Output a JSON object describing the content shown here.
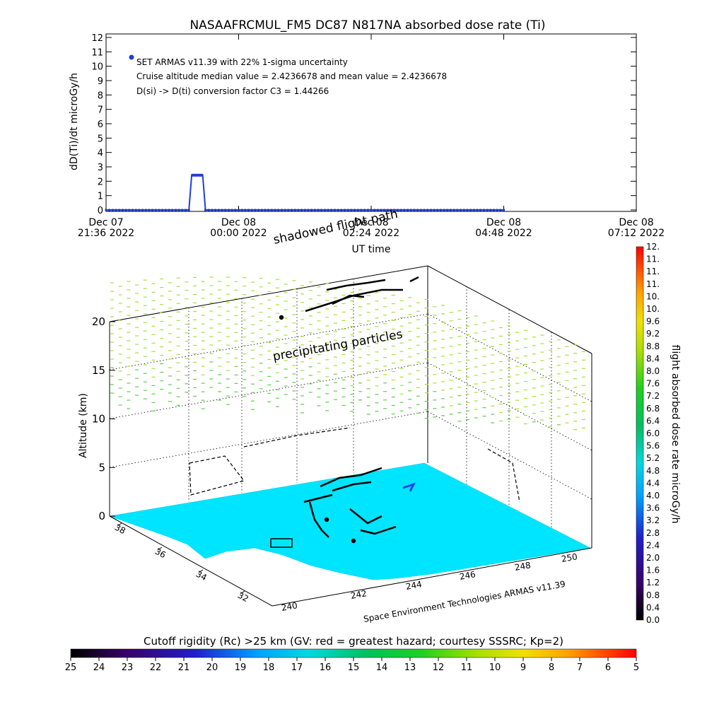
{
  "title": "NASAAFRCMUL_FM5 DC87 N817NA absorbed dose rate (Ti)",
  "colors": {
    "series": "#1f3fd6",
    "ground": "#00e5ff",
    "particles": "#9fe23a",
    "path": "#000000"
  },
  "chart_data": [
    {
      "type": "line",
      "title": "NASAAFRCMUL_FM5 DC87 N817NA absorbed dose rate (Ti)",
      "ylabel": "dD(Ti)/dt microGy/h",
      "xlabel": "UT time",
      "ylim": [
        0,
        12
      ],
      "y_ticks": [
        "0",
        "1",
        "2",
        "3",
        "4",
        "5",
        "6",
        "7",
        "8",
        "9",
        "10",
        "11",
        "12"
      ],
      "x_ticks": [
        {
          "line1": "Dec 07",
          "line2": "21:36 2022"
        },
        {
          "line1": "Dec 08",
          "line2": "00:00 2022"
        },
        {
          "line1": "Dec 08",
          "line2": "02:24 2022"
        },
        {
          "line1": "Dec 08",
          "line2": "04:48 2022"
        },
        {
          "line1": "Dec 08",
          "line2": "07:12 2022"
        }
      ],
      "x_hours": [
        0,
        2.4,
        4.8,
        7.2,
        9.6
      ],
      "series": [
        {
          "x_hours": [
            0.0,
            1.5,
            1.55,
            1.75,
            1.8,
            7.2
          ],
          "values": [
            0.0,
            0.0,
            2.42,
            2.42,
            0.0,
            0.0
          ]
        }
      ],
      "legend_marker": "SET ARMAS v11.39 with 22% 1-sigma uncertainty",
      "annotations": [
        "Cruise altitude median value = 2.4236678 and mean value = 2.4236678",
        "D(si) -> D(ti) conversion factor C3 = 1.44266"
      ]
    },
    {
      "type": "scatter",
      "zlabel": "Altitude (km)",
      "z_ticks": [
        "0",
        "5",
        "10",
        "15",
        "20"
      ],
      "lat_ticks": [
        "38",
        "36",
        "34",
        "32"
      ],
      "lon_ticks": [
        "240",
        "242",
        "244",
        "246",
        "248",
        "250"
      ],
      "annotations": [
        "shadowed flight path",
        "precipitating particles"
      ],
      "credit": "Space Environment Technologies ARMAS v11.39"
    }
  ],
  "dose_colorbar": {
    "label": "flight absorbed dose rate microGy/h",
    "ticks": [
      "0.0",
      "0.4",
      "0.8",
      "1.2",
      "1.6",
      "2.0",
      "2.4",
      "2.8",
      "3.2",
      "3.6",
      "4.0",
      "4.4",
      "4.8",
      "5.2",
      "5.6",
      "6.0",
      "6.4",
      "6.8",
      "7.2",
      "7.6",
      "8.0",
      "8.4",
      "8.8",
      "9.2",
      "9.6",
      "10.",
      "10.",
      "11.",
      "11.",
      "11.",
      "12."
    ]
  },
  "rigidity_colorbar": {
    "label": "Cutoff rigidity (Rc) >25 km (GV: red = greatest hazard; courtesy SSSRC; Kp=2)",
    "ticks": [
      "25",
      "24",
      "23",
      "22",
      "21",
      "20",
      "19",
      "18",
      "17",
      "16",
      "15",
      "14",
      "13",
      "12",
      "11",
      "10",
      "9",
      "8",
      "7",
      "6",
      "5"
    ]
  }
}
